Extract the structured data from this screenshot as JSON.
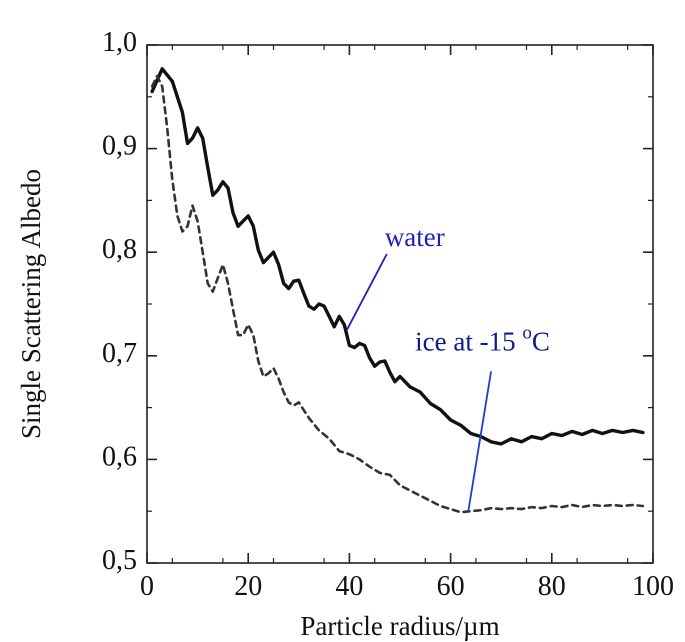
{
  "chart_data": {
    "type": "line",
    "xlabel": "Particle radius/µm",
    "ylabel": "Single Scattering Albedo",
    "xlim": [
      0,
      100
    ],
    "ylim": [
      0.5,
      1.0
    ],
    "x_ticks": [
      0,
      20,
      40,
      60,
      80,
      100
    ],
    "x_tick_labels": [
      "0",
      "20",
      "40",
      "60",
      "80",
      "100"
    ],
    "y_ticks": [
      0.5,
      0.6,
      0.7,
      0.8,
      0.9,
      1.0
    ],
    "y_tick_labels": [
      "0,5",
      "0,6",
      "0,7",
      "0,8",
      "0,9",
      "1,0"
    ],
    "grid": false,
    "series": [
      {
        "name": "water",
        "line_style": "solid",
        "color": "#111111",
        "x": [
          1,
          3,
          5,
          7,
          8,
          9,
          10,
          11,
          12,
          13,
          14,
          15,
          16,
          17,
          18,
          19,
          20,
          21,
          22,
          23,
          24,
          25,
          26,
          27,
          28,
          29,
          30,
          31,
          32,
          33,
          34,
          35,
          36,
          37,
          38,
          39,
          40,
          41,
          42,
          43,
          44,
          45,
          46,
          47,
          48,
          49,
          50,
          52,
          54,
          56,
          58,
          60,
          62,
          64,
          66,
          68,
          70,
          72,
          74,
          76,
          78,
          80,
          82,
          84,
          86,
          88,
          90,
          92,
          94,
          96,
          98
        ],
        "y": [
          0.955,
          0.977,
          0.965,
          0.935,
          0.905,
          0.91,
          0.92,
          0.91,
          0.882,
          0.855,
          0.86,
          0.868,
          0.862,
          0.838,
          0.825,
          0.83,
          0.835,
          0.825,
          0.802,
          0.79,
          0.795,
          0.8,
          0.788,
          0.77,
          0.765,
          0.772,
          0.773,
          0.76,
          0.748,
          0.745,
          0.75,
          0.748,
          0.738,
          0.728,
          0.738,
          0.73,
          0.71,
          0.708,
          0.712,
          0.71,
          0.698,
          0.69,
          0.694,
          0.695,
          0.684,
          0.675,
          0.68,
          0.67,
          0.665,
          0.654,
          0.648,
          0.638,
          0.633,
          0.625,
          0.622,
          0.617,
          0.615,
          0.62,
          0.617,
          0.622,
          0.62,
          0.625,
          0.623,
          0.627,
          0.624,
          0.628,
          0.625,
          0.628,
          0.626,
          0.628,
          0.626
        ]
      },
      {
        "name": "ice at -15 °C",
        "line_style": "dashed",
        "color": "#333333",
        "x": [
          1,
          2,
          3,
          4,
          5,
          6,
          7,
          8,
          9,
          10,
          11,
          12,
          13,
          14,
          15,
          16,
          17,
          18,
          19,
          20,
          21,
          22,
          23,
          24,
          25,
          26,
          27,
          28,
          29,
          30,
          32,
          34,
          36,
          38,
          40,
          42,
          44,
          46,
          48,
          50,
          52,
          54,
          56,
          58,
          60,
          62,
          64,
          66,
          68,
          70,
          72,
          74,
          76,
          78,
          80,
          82,
          84,
          86,
          88,
          90,
          92,
          94,
          96,
          98
        ],
        "y": [
          0.96,
          0.97,
          0.96,
          0.92,
          0.87,
          0.835,
          0.82,
          0.825,
          0.845,
          0.83,
          0.8,
          0.77,
          0.762,
          0.775,
          0.788,
          0.77,
          0.745,
          0.72,
          0.72,
          0.73,
          0.72,
          0.695,
          0.68,
          0.683,
          0.688,
          0.678,
          0.665,
          0.655,
          0.652,
          0.655,
          0.64,
          0.628,
          0.62,
          0.608,
          0.605,
          0.6,
          0.593,
          0.587,
          0.585,
          0.575,
          0.57,
          0.565,
          0.56,
          0.555,
          0.552,
          0.549,
          0.55,
          0.551,
          0.553,
          0.552,
          0.553,
          0.552,
          0.554,
          0.553,
          0.555,
          0.554,
          0.556,
          0.554,
          0.556,
          0.555,
          0.556,
          0.555,
          0.556,
          0.555
        ]
      }
    ],
    "annotations": [
      {
        "text": "water",
        "color": "#1f1fbf",
        "label_x": 47,
        "label_y": 0.806,
        "pointer_to": [
          39.5,
          0.725
        ]
      },
      {
        "text_main": "ice at -15 ",
        "text_sup": "o",
        "text_end": "C",
        "color": "#0b1a8c",
        "label_x": 53,
        "label_y": 0.705,
        "pointer_from": [
          68,
          0.685
        ],
        "pointer_to": [
          63.5,
          0.55
        ]
      }
    ]
  }
}
